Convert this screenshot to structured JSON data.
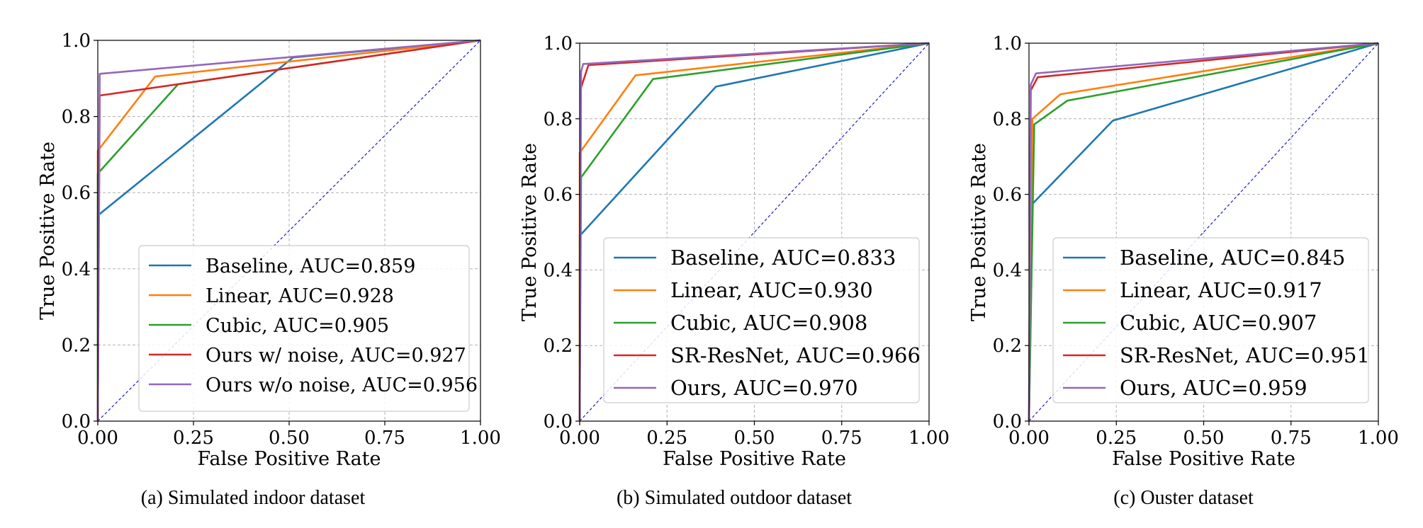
{
  "axis_style": {
    "grid_color": "#b0b0b0",
    "diagonal_color": "#1a1ad6"
  },
  "chart_data": [
    {
      "type": "line",
      "xlabel": "False Positive Rate",
      "ylabel": "True Positive Rate",
      "xlim": [
        0,
        1
      ],
      "ylim": [
        0,
        1
      ],
      "xticks": [
        "0.00",
        "0.25",
        "0.50",
        "0.75",
        "1.00"
      ],
      "yticks": [
        "0.0",
        "0.2",
        "0.4",
        "0.6",
        "0.8",
        "1.0"
      ],
      "grid": true,
      "diagonal": true,
      "legend_position": "lower-right",
      "caption": "(a)  Simulated indoor dataset",
      "series": [
        {
          "name": "Baseline, AUC=0.859",
          "color": "#1f77b4",
          "x": [
            0,
            0,
            0.51,
            1
          ],
          "y": [
            0,
            0.54,
            0.955,
            1
          ]
        },
        {
          "name": "Linear, AUC=0.928",
          "color": "#ff7f0e",
          "x": [
            0,
            0,
            0.15,
            1
          ],
          "y": [
            0,
            0.71,
            0.905,
            1
          ]
        },
        {
          "name": "Cubic, AUC=0.905",
          "color": "#2ca02c",
          "x": [
            0,
            0,
            0.21,
            1
          ],
          "y": [
            0,
            0.65,
            0.885,
            1
          ]
        },
        {
          "name": "Ours w/ noise, AUC=0.927",
          "color": "#d62728",
          "x": [
            0,
            0.005,
            1
          ],
          "y": [
            0,
            0.855,
            1
          ]
        },
        {
          "name": "Ours w/o noise, AUC=0.956",
          "color": "#9467bd",
          "x": [
            0,
            0.005,
            1
          ],
          "y": [
            0,
            0.912,
            1
          ]
        }
      ]
    },
    {
      "type": "line",
      "xlabel": "False Positive Rate",
      "ylabel": "True Positive Rate",
      "xlim": [
        0,
        1
      ],
      "ylim": [
        0,
        1
      ],
      "xticks": [
        "0.00",
        "0.25",
        "0.50",
        "0.75",
        "1.00"
      ],
      "yticks": [
        "0.0",
        "0.2",
        "0.4",
        "0.6",
        "0.8",
        "1.0"
      ],
      "grid": true,
      "diagonal": true,
      "legend_position": "lower-right",
      "caption": "(b)  Simulated outdoor dataset",
      "series": [
        {
          "name": "Baseline, AUC=0.833",
          "color": "#1f77b4",
          "x": [
            0,
            0,
            0.39,
            1
          ],
          "y": [
            0,
            0.49,
            0.885,
            1
          ]
        },
        {
          "name": "Linear, AUC=0.930",
          "color": "#ff7f0e",
          "x": [
            0,
            0,
            0.16,
            1
          ],
          "y": [
            0,
            0.71,
            0.915,
            1
          ]
        },
        {
          "name": "Cubic, AUC=0.908",
          "color": "#2ca02c",
          "x": [
            0,
            0.004,
            0.21,
            1
          ],
          "y": [
            0,
            0.645,
            0.905,
            1
          ]
        },
        {
          "name": "SR-ResNet, AUC=0.966",
          "color": "#d62728",
          "x": [
            0,
            0.003,
            0.025,
            1
          ],
          "y": [
            0,
            0.88,
            0.942,
            1
          ]
        },
        {
          "name": "Ours, AUC=0.970",
          "color": "#9467bd",
          "x": [
            0,
            0.004,
            0.01,
            1
          ],
          "y": [
            0,
            0.925,
            0.945,
            1
          ]
        }
      ]
    },
    {
      "type": "line",
      "xlabel": "False Positive Rate",
      "ylabel": "True Positive Rate",
      "xlim": [
        0,
        1
      ],
      "ylim": [
        0,
        1
      ],
      "xticks": [
        "0.00",
        "0.25",
        "0.50",
        "0.75",
        "1.00"
      ],
      "yticks": [
        "0.0",
        "0.2",
        "0.4",
        "0.6",
        "0.8",
        "1.0"
      ],
      "grid": true,
      "diagonal": true,
      "legend_position": "lower-right",
      "caption": "(c)  Ouster dataset",
      "series": [
        {
          "name": "Baseline, AUC=0.845",
          "color": "#1f77b4",
          "x": [
            0,
            0.01,
            0.24,
            1
          ],
          "y": [
            0,
            0.575,
            0.795,
            1
          ]
        },
        {
          "name": "Linear, AUC=0.917",
          "color": "#ff7f0e",
          "x": [
            0,
            0.01,
            0.09,
            1
          ],
          "y": [
            0,
            0.8,
            0.865,
            1
          ]
        },
        {
          "name": "Cubic, AUC=0.907",
          "color": "#2ca02c",
          "x": [
            0,
            0.015,
            0.11,
            1
          ],
          "y": [
            0,
            0.785,
            0.848,
            1
          ]
        },
        {
          "name": "SR-ResNet, AUC=0.951",
          "color": "#d62728",
          "x": [
            0,
            0.005,
            0.025,
            1
          ],
          "y": [
            0,
            0.875,
            0.91,
            1
          ]
        },
        {
          "name": "Ours, AUC=0.959",
          "color": "#9467bd",
          "x": [
            0,
            0.005,
            0.02,
            1
          ],
          "y": [
            0,
            0.89,
            0.92,
            1
          ]
        }
      ]
    }
  ]
}
